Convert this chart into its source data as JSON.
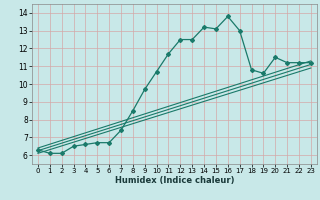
{
  "title": "",
  "xlabel": "Humidex (Indice chaleur)",
  "ylabel": "",
  "bg_color": "#c8e8e8",
  "line_color": "#1a7a6a",
  "grid_color": "#d4a8a8",
  "xlim": [
    -0.5,
    23.5
  ],
  "ylim": [
    5.5,
    14.5
  ],
  "xticks": [
    0,
    1,
    2,
    3,
    4,
    5,
    6,
    7,
    8,
    9,
    10,
    11,
    12,
    13,
    14,
    15,
    16,
    17,
    18,
    19,
    20,
    21,
    22,
    23
  ],
  "yticks": [
    6,
    7,
    8,
    9,
    10,
    11,
    12,
    13,
    14
  ],
  "main_line_x": [
    0,
    1,
    2,
    3,
    4,
    5,
    6,
    7,
    8,
    9,
    10,
    11,
    12,
    13,
    14,
    15,
    16,
    17,
    18,
    19,
    20,
    21,
    22,
    23
  ],
  "main_line_y": [
    6.3,
    6.1,
    6.1,
    6.5,
    6.6,
    6.7,
    6.7,
    7.4,
    8.5,
    9.7,
    10.7,
    11.7,
    12.5,
    12.5,
    13.2,
    13.1,
    13.8,
    13.0,
    10.8,
    10.6,
    11.5,
    11.2,
    11.2,
    11.2
  ],
  "reg_lines": [
    {
      "x": [
        0,
        23
      ],
      "y": [
        6.1,
        10.9
      ]
    },
    {
      "x": [
        0,
        23
      ],
      "y": [
        6.25,
        11.1
      ]
    },
    {
      "x": [
        0,
        23
      ],
      "y": [
        6.4,
        11.3
      ]
    }
  ]
}
